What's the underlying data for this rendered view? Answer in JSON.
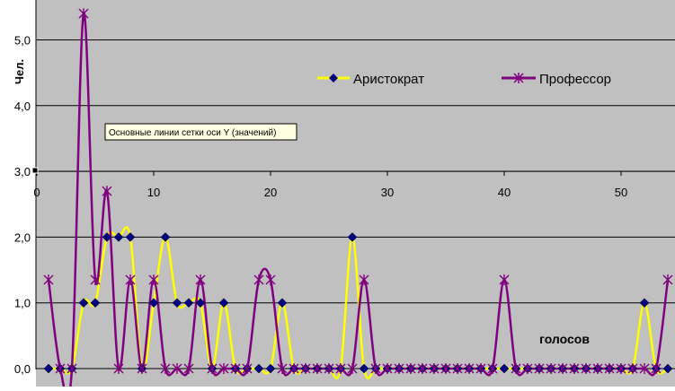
{
  "chart_data": {
    "type": "line",
    "ylabel": "Чел.",
    "xlabel": "голосов",
    "ylim": [
      0,
      5.5
    ],
    "xlim": [
      0,
      54
    ],
    "y_ticks": [
      "0,0",
      "1,0",
      "2,0",
      "3,0",
      "4,0",
      "5,0"
    ],
    "x_ticks": [
      "0",
      "10",
      "20",
      "30",
      "40",
      "50"
    ],
    "grid": "horizontal",
    "legend_position": "top-right",
    "tooltip": "Основные линии сетки оси Y (значений)",
    "plot_background": "#c0c0c0",
    "series": [
      {
        "name": "Аристократ",
        "color": "#ffff00",
        "marker": "diamond",
        "marker_color": "#000080",
        "x": [
          1,
          2,
          3,
          4,
          5,
          6,
          7,
          8,
          9,
          10,
          11,
          12,
          13,
          14,
          15,
          16,
          17,
          18,
          19,
          20,
          21,
          22,
          23,
          24,
          25,
          26,
          27,
          28,
          29,
          30,
          31,
          32,
          33,
          34,
          35,
          36,
          37,
          38,
          39,
          40,
          41,
          42,
          43,
          44,
          45,
          46,
          47,
          48,
          49,
          50,
          51,
          52,
          53,
          54
        ],
        "values": [
          0,
          0,
          0,
          1,
          1,
          2,
          2,
          2,
          0,
          1,
          2,
          1,
          1,
          1,
          0,
          1,
          0,
          0,
          0,
          0,
          1,
          0,
          0,
          0,
          0,
          0,
          2,
          0,
          0,
          0,
          0,
          0,
          0,
          0,
          0,
          0,
          0,
          0,
          0,
          0,
          0,
          0,
          0,
          0,
          0,
          0,
          0,
          0,
          0,
          0,
          0,
          1,
          0,
          0
        ]
      },
      {
        "name": "Профессор",
        "color": "#800080",
        "marker": "asterisk",
        "marker_color": "#800080",
        "x": [
          1,
          2,
          3,
          4,
          5,
          6,
          7,
          8,
          9,
          10,
          11,
          12,
          13,
          14,
          15,
          16,
          17,
          18,
          19,
          20,
          21,
          22,
          23,
          24,
          25,
          26,
          27,
          28,
          29,
          30,
          31,
          32,
          33,
          34,
          35,
          36,
          37,
          38,
          39,
          40,
          41,
          42,
          43,
          44,
          45,
          46,
          47,
          48,
          49,
          50,
          51,
          52,
          53,
          54
        ],
        "values": [
          1.35,
          0,
          0,
          5.4,
          1.35,
          2.7,
          0,
          1.35,
          0,
          1.35,
          0,
          0,
          0,
          1.35,
          0,
          0,
          0,
          0,
          1.35,
          1.35,
          0,
          0,
          0,
          0,
          0,
          0,
          0,
          1.35,
          0,
          0,
          0,
          0,
          0,
          0,
          0,
          0,
          0,
          0,
          0,
          1.35,
          0,
          0,
          0,
          0,
          0,
          0,
          0,
          0,
          0,
          0,
          0,
          0,
          0,
          1.35
        ]
      }
    ]
  }
}
